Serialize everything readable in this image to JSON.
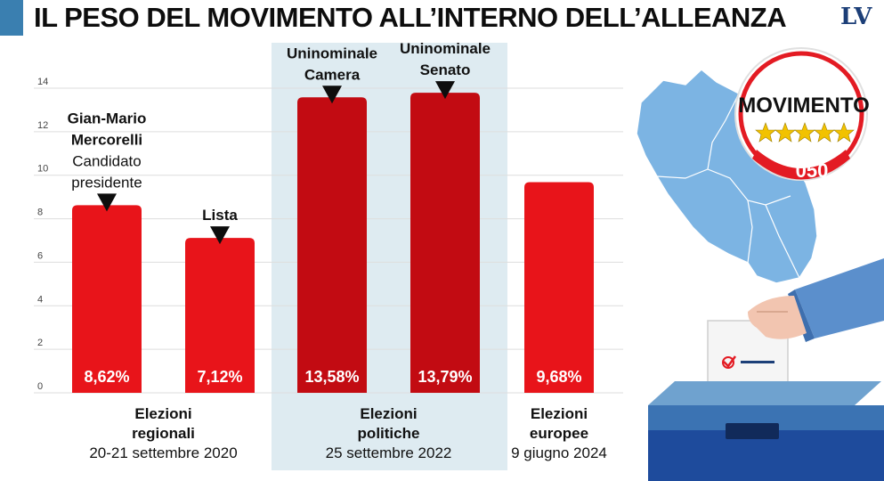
{
  "header": {
    "title": "IL PESO DEL MOVIMENTO ALL’INTERNO DELL’ALLEANZA",
    "brand": "LV"
  },
  "colors": {
    "bar_red": "#e8141a",
    "bar_darkred": "#c20b12",
    "panel": "#deebf1",
    "accent": "#3a7fb0",
    "map_blue": "#7cb4e3"
  },
  "logo": {
    "text": "MOVIMENTO",
    "number": "050",
    "icon": "movimento-logo"
  },
  "chart_data": {
    "type": "bar",
    "categories": [
      "Gian-Mario Mercorelli",
      "Lista",
      "Uninominale Camera",
      "Uninominale Senato",
      "Elezioni europee"
    ],
    "values": [
      8.62,
      7.12,
      13.58,
      13.79,
      9.68
    ],
    "value_labels": [
      "8,62%",
      "7,12%",
      "13,58%",
      "13,79%",
      "9,68%"
    ],
    "bar_colors": [
      "#e8141a",
      "#e8141a",
      "#c20b12",
      "#c20b12",
      "#e8141a"
    ],
    "ylim": [
      0,
      14
    ],
    "yticks": [
      0,
      2,
      4,
      6,
      8,
      10,
      12,
      14
    ],
    "ytick_labels": [
      "0",
      "2",
      "4",
      "6",
      "8",
      "10",
      "12",
      "14"
    ],
    "grid": true,
    "annotations": [
      {
        "bar": 0,
        "lines": [
          {
            "text": "Gian-Mario",
            "bold": true
          },
          {
            "text": "Mercorelli",
            "bold": true
          },
          {
            "text": "Candidato",
            "bold": false
          },
          {
            "text": "presidente",
            "bold": false
          }
        ]
      },
      {
        "bar": 1,
        "lines": [
          {
            "text": "Lista",
            "bold": true
          }
        ]
      },
      {
        "bar": 2,
        "lines": [
          {
            "text": "Uninominale",
            "bold": true
          },
          {
            "text": "Camera",
            "bold": true
          }
        ]
      },
      {
        "bar": 3,
        "lines": [
          {
            "text": "Uninominale",
            "bold": true
          },
          {
            "text": "Senato",
            "bold": true
          }
        ]
      }
    ],
    "groups": [
      {
        "bars": [
          0,
          1
        ],
        "lines": [
          {
            "text": "Elezioni",
            "bold": true
          },
          {
            "text": "regionali",
            "bold": true
          },
          {
            "text": "20-21 settembre 2020",
            "bold": false
          }
        ]
      },
      {
        "bars": [
          2,
          3
        ],
        "lines": [
          {
            "text": "Elezioni",
            "bold": true
          },
          {
            "text": "politiche",
            "bold": true
          },
          {
            "text": "25 settembre 2022",
            "bold": false
          }
        ]
      },
      {
        "bars": [
          4
        ],
        "lines": [
          {
            "text": "Elezioni",
            "bold": true
          },
          {
            "text": "europee",
            "bold": true
          },
          {
            "text": "9 giugno 2024",
            "bold": false
          }
        ]
      }
    ]
  }
}
